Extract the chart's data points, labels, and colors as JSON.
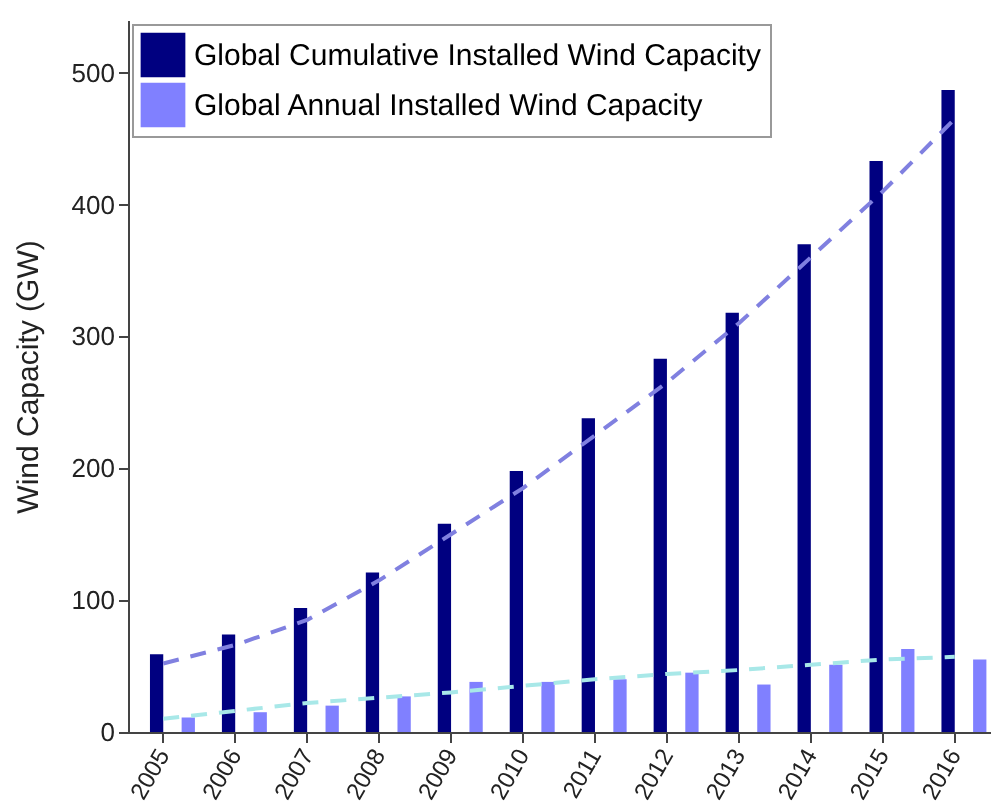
{
  "chart_data": {
    "type": "bar",
    "ylabel": "Wind Capacity (GW)",
    "categories": [
      "2005",
      "2006",
      "2007",
      "2008",
      "2009",
      "2010",
      "2011",
      "2012",
      "2013",
      "2014",
      "2015",
      "2016"
    ],
    "series": [
      {
        "name": "Global Cumulative Installed Wind Capacity",
        "color": "#000080",
        "values": [
          59,
          74,
          94,
          121,
          158,
          198,
          238,
          283,
          318,
          370,
          433,
          487
        ]
      },
      {
        "name": "Global Annual Installed Wind Capacity",
        "color": "#8080ff",
        "values": [
          11,
          15,
          20,
          27,
          38,
          38,
          40,
          45,
          36,
          51,
          63,
          55
        ]
      },
      {
        "type": "line",
        "color": "#8080e0",
        "line_style": "dashed",
        "values": [
          52,
          66,
          85,
          115,
          150,
          185,
          225,
          265,
          310,
          360,
          410,
          465
        ]
      },
      {
        "type": "line",
        "color": "#a8e8e8",
        "line_style": "dashed",
        "values": [
          10,
          16,
          22,
          26,
          30,
          35,
          40,
          44,
          47,
          51,
          55,
          57
        ]
      }
    ],
    "ylim": [
      0,
      540
    ],
    "yticks": [
      0,
      100,
      200,
      300,
      400,
      500
    ],
    "grid": false,
    "legend": "top left"
  }
}
